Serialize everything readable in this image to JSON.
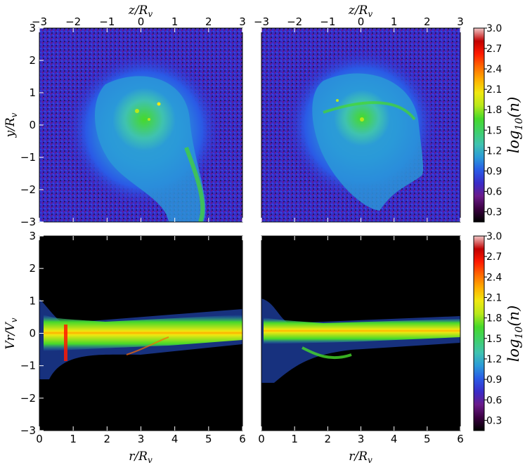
{
  "colors": {
    "black": "#000000",
    "cmap": [
      "#000000",
      "#3a0040",
      "#6a1a8a",
      "#3a2bc8",
      "#2a5ae6",
      "#2b9ad8",
      "#3fc2b0",
      "#3fd06a",
      "#46d92a",
      "#b8e81a",
      "#f0e810",
      "#ffb000",
      "#ff6a00",
      "#ff1a00",
      "#c00000",
      "#f2c8c8"
    ]
  },
  "colorbars": [
    {
      "label": "log₁₀(n)",
      "ticks": [
        "3.0",
        "2.7",
        "2.4",
        "2.1",
        "1.8",
        "1.5",
        "1.2",
        "0.9",
        "0.6",
        "0.3"
      ]
    },
    {
      "label": "log₁₀(n)",
      "ticks": [
        "3.0",
        "2.7",
        "2.4",
        "2.1",
        "1.8",
        "1.5",
        "1.2",
        "0.9",
        "0.6",
        "0.3"
      ]
    }
  ],
  "chart_data": [
    {
      "type": "heatmap",
      "panel": "top-left",
      "title": "",
      "xlabel": "z/Rv",
      "ylabel": "y/Rv",
      "xlim": [
        -3,
        3
      ],
      "ylim": [
        -3,
        3
      ],
      "x_ticks": [
        "−3",
        "−2",
        "−1",
        "0",
        "1",
        "2",
        "3"
      ],
      "y_ticks": [
        "3",
        "2",
        "1",
        "0",
        "−1",
        "−2",
        "−3"
      ]
    },
    {
      "type": "heatmap",
      "panel": "top-right",
      "title": "",
      "xlabel": "z/Rv",
      "ylabel": "",
      "xlim": [
        -3,
        3
      ],
      "ylim": [
        -3,
        3
      ],
      "x_ticks": [
        "−3",
        "−2",
        "−1",
        "0",
        "1",
        "2",
        "3"
      ],
      "y_ticks": []
    },
    {
      "type": "heatmap",
      "panel": "bottom-left",
      "title": "",
      "xlabel": "r/Rv",
      "ylabel": "Vr/Vv",
      "xlim": [
        0,
        6
      ],
      "ylim": [
        -3,
        3
      ],
      "x_ticks": [
        "0",
        "1",
        "2",
        "3",
        "4",
        "5",
        "6"
      ],
      "y_ticks": [
        "3",
        "2",
        "1",
        "0",
        "−1",
        "−2",
        "−3"
      ]
    },
    {
      "type": "heatmap",
      "panel": "bottom-right",
      "title": "",
      "xlabel": "r/Rv",
      "ylabel": "",
      "xlim": [
        0,
        6
      ],
      "ylim": [
        -3,
        3
      ],
      "x_ticks": [
        "0",
        "1",
        "2",
        "3",
        "4",
        "5",
        "6"
      ],
      "y_ticks": []
    }
  ]
}
